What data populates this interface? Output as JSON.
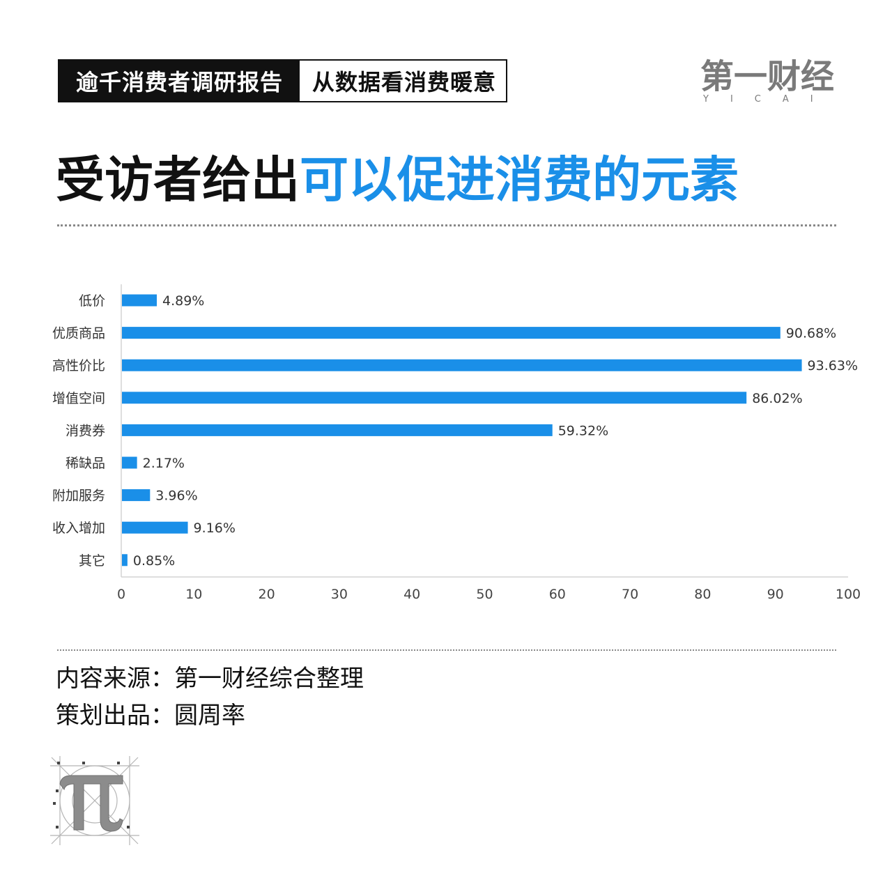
{
  "header": {
    "tag_primary": "逾千消费者调研报告",
    "tag_secondary": "从数据看消费暖意"
  },
  "logo": {
    "main": "第一财经",
    "sub": "YICAI"
  },
  "headline": {
    "part1": "受访者给出",
    "part2": "可以促进消费的元素"
  },
  "chart_data": {
    "type": "bar",
    "orientation": "horizontal",
    "title": "受访者给出可以促进消费的元素",
    "categories": [
      "低价",
      "优质商品",
      "高性价比",
      "增值空间",
      "消费券",
      "稀缺品",
      "附加服务",
      "收入增加",
      "其它"
    ],
    "values": [
      4.89,
      90.68,
      93.63,
      86.02,
      59.32,
      2.17,
      3.96,
      9.16,
      0.85
    ],
    "value_labels": [
      "4.89%",
      "90.68%",
      "93.63%",
      "86.02%",
      "59.32%",
      "2.17%",
      "3.96%",
      "9.16%",
      "0.85%"
    ],
    "xticks": [
      0,
      10,
      20,
      30,
      40,
      50,
      60,
      70,
      80,
      90,
      100
    ],
    "xlim": [
      0,
      100
    ],
    "grid": false,
    "color": "#1a8fe8"
  },
  "credits": {
    "source": "内容来源：第一财经综合整理",
    "producer": "策划出品：圆周率"
  },
  "colors": {
    "accent": "#1a8fe8",
    "bar": "#1a8fe8",
    "dark": "#111111"
  },
  "icons": {
    "footer_logo": "pi-icon"
  }
}
